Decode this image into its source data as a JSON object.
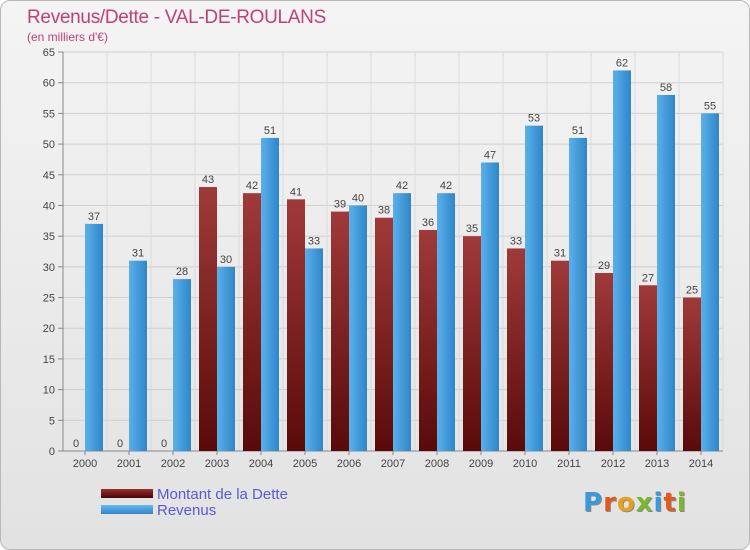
{
  "header": {
    "title": "Revenus/Dette - VAL-DE-ROULANS",
    "subtitle": "(en milliers d'€)"
  },
  "legend": {
    "debt_label": "Montant de la Dette",
    "revenue_label": "Revenus"
  },
  "logo": {
    "letters": [
      "P",
      "r",
      "o",
      "x",
      "i",
      "t",
      "i"
    ],
    "colors": [
      "#3a9ad9",
      "#e05a1e",
      "#e8a11a",
      "#78b82a",
      "#3a9ad9",
      "#e05a1e",
      "#78b82a"
    ]
  },
  "colors": {
    "debt": "#7a1a1a",
    "revenue": "#3a98da"
  },
  "chart_data": {
    "type": "bar",
    "title": "Revenus/Dette - VAL-DE-ROULANS",
    "subtitle": "(en milliers d'€)",
    "categories": [
      "2000",
      "2001",
      "2002",
      "2003",
      "2004",
      "2005",
      "2006",
      "2007",
      "2008",
      "2009",
      "2010",
      "2011",
      "2012",
      "2013",
      "2014"
    ],
    "series": [
      {
        "name": "Montant de la Dette",
        "values": [
          0,
          0,
          0,
          43,
          42,
          41,
          39,
          38,
          36,
          35,
          33,
          31,
          29,
          27,
          25
        ]
      },
      {
        "name": "Revenus",
        "values": [
          37,
          31,
          28,
          30,
          51,
          33,
          40,
          42,
          42,
          47,
          53,
          51,
          62,
          58,
          55
        ]
      }
    ],
    "yticks": [
      0,
      5,
      10,
      15,
      20,
      25,
      30,
      35,
      40,
      45,
      50,
      55,
      60,
      65
    ],
    "ylim": [
      0,
      65
    ],
    "grid": true,
    "legend_position": "bottom-left"
  }
}
